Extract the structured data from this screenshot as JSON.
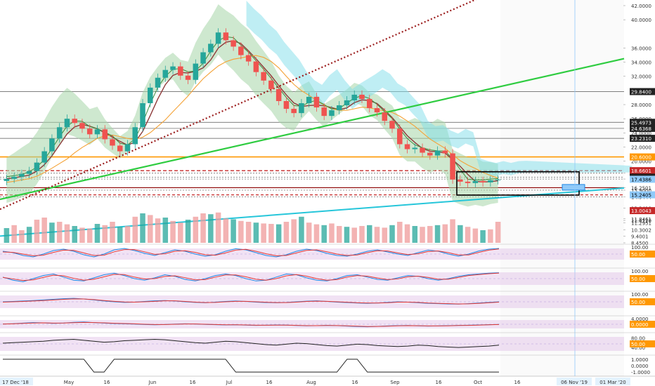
{
  "colors": {
    "background": "#ffffff",
    "bull_candle": "#26a69a",
    "bear_candle": "#ef5350",
    "cloud_green": "#a5d6a7",
    "cloud_blue": "#80deea",
    "trend_green": "#2ecc40",
    "trend_cyan": "#26c6da",
    "dotted_red": "#9b1c1c",
    "orange_level": "#ff9800",
    "red_level": "#c62828",
    "oscillator_band": "#e1bee7",
    "axis_text": "#333333"
  },
  "chart_data": [
    {
      "type": "candlestick",
      "title": "",
      "x_ticks": [
        "17 Dec '18",
        "May",
        "16",
        "Jun",
        "16",
        "Jul",
        "16",
        "Aug",
        "16",
        "Sep",
        "16",
        "Oct",
        "16",
        "06 Nov '19",
        "01 Mar '20"
      ],
      "y_ticks": [
        "42.0000",
        "40.0000",
        "36.0000",
        "34.0000",
        "32.0000",
        "28.0000",
        "26.0000",
        "24.0000",
        "22.0000",
        "20.0000",
        "18.3000",
        "17.4767",
        "16.2501",
        "15.9000",
        "14.9444",
        "13.3419",
        "11.8461",
        "11.6110",
        "11.2951",
        "10.3002",
        "9.4001",
        "8.4500"
      ],
      "price_labels": [
        {
          "text": "29.8400",
          "style": "dark"
        },
        {
          "text": "25.4973",
          "style": "dark"
        },
        {
          "text": "24.6368",
          "style": "dark"
        },
        {
          "text": "23.2310",
          "style": "dark"
        },
        {
          "text": "20.6000",
          "style": "orange"
        },
        {
          "text": "18.6601",
          "style": "red"
        },
        {
          "text": "17.7386",
          "style": "dark"
        },
        {
          "text": "17.4386",
          "style": "blue"
        },
        {
          "text": "15.2405",
          "style": "blue"
        },
        {
          "text": "13.0043",
          "style": "red"
        }
      ],
      "series_close": [
        17.5,
        17.8,
        18.2,
        18.6,
        19.8,
        21.4,
        23.2,
        24.8,
        26.0,
        25.4,
        24.6,
        23.8,
        24.5,
        23.1,
        22.2,
        21.4,
        22.4,
        24.8,
        28.2,
        30.4,
        31.8,
        32.9,
        33.4,
        32.1,
        31.5,
        33.8,
        35.4,
        36.6,
        38.2,
        37.1,
        36.2,
        35.0,
        34.1,
        32.6,
        31.4,
        30.2,
        28.5,
        27.4,
        26.8,
        28.2,
        29.1,
        27.6,
        26.4,
        27.2,
        27.9,
        28.6,
        29.4,
        28.8,
        27.5,
        26.9,
        25.7,
        24.6,
        22.4,
        21.7,
        21.9,
        21.2,
        20.8,
        21.5,
        21.1,
        17.4,
        17.1,
        16.9,
        17.2,
        17.0,
        17.3,
        17.4
      ],
      "ylim": [
        8.45,
        42.0
      ],
      "horizontal_levels": [
        29.84,
        25.4973,
        24.6368,
        23.231,
        20.6,
        18.6601,
        18.3,
        17.7386,
        17.4767,
        16.2501,
        15.9,
        15.2405,
        14.9444
      ],
      "volume_bars": [
        0.35,
        0.42,
        0.3,
        0.38,
        0.55,
        0.6,
        0.48,
        0.5,
        0.44,
        0.4,
        0.36,
        0.34,
        0.45,
        0.42,
        0.5,
        0.38,
        0.4,
        0.62,
        0.7,
        0.66,
        0.58,
        0.6,
        0.52,
        0.48,
        0.55,
        0.62,
        0.7,
        0.68,
        0.72,
        0.58,
        0.56,
        0.52,
        0.5,
        0.48,
        0.46,
        0.45,
        0.44,
        0.5,
        0.56,
        0.62,
        0.48,
        0.44,
        0.42,
        0.46,
        0.4,
        0.38,
        0.36,
        0.4,
        0.42,
        0.38,
        0.36,
        0.42,
        0.5,
        0.44,
        0.4,
        0.38,
        0.4,
        0.42,
        0.44,
        0.56,
        0.42,
        0.38,
        0.34,
        0.3,
        0.32,
        0.5
      ]
    },
    {
      "type": "line",
      "title": "",
      "y_ticks": [
        "100.00"
      ],
      "label": "50.00",
      "range": [
        0,
        100
      ],
      "series": [
        {
          "values": [
            70,
            60,
            40,
            30,
            50,
            75,
            85,
            70,
            45,
            30,
            50,
            80,
            90,
            75,
            55,
            40,
            60,
            80,
            70,
            50,
            35,
            45,
            70,
            88,
            80,
            60,
            40,
            30,
            45,
            70,
            85,
            75,
            55,
            40,
            35,
            50,
            70,
            80,
            65,
            50,
            40,
            60,
            78,
            70,
            50,
            35,
            50,
            72,
            85,
            90
          ]
        },
        {
          "values": [
            65,
            62,
            50,
            38,
            42,
            62,
            78,
            76,
            58,
            40,
            42,
            66,
            82,
            82,
            66,
            48,
            52,
            70,
            74,
            62,
            45,
            42,
            58,
            78,
            84,
            70,
            52,
            38,
            40,
            58,
            76,
            80,
            66,
            50,
            40,
            44,
            60,
            74,
            72,
            58,
            46,
            52,
            68,
            72,
            60,
            44,
            44,
            62,
            78,
            86
          ]
        }
      ]
    },
    {
      "type": "line",
      "title": "",
      "y_ticks": [
        "100.00"
      ],
      "label": "50.00",
      "range": [
        0,
        100
      ],
      "series": [
        {
          "values": [
            60,
            40,
            30,
            50,
            70,
            80,
            60,
            40,
            35,
            55,
            75,
            85,
            70,
            50,
            40,
            55,
            75,
            65,
            45,
            35,
            50,
            70,
            80,
            70,
            50,
            35,
            40,
            60,
            80,
            75,
            55,
            40,
            35,
            50,
            70,
            75,
            60,
            45,
            40,
            55,
            70,
            65,
            50,
            40,
            50,
            65,
            75,
            80,
            85,
            88
          ]
        },
        {
          "values": [
            58,
            48,
            38,
            42,
            58,
            72,
            68,
            52,
            40,
            46,
            62,
            78,
            76,
            60,
            48,
            50,
            64,
            68,
            56,
            42,
            44,
            60,
            74,
            74,
            62,
            46,
            40,
            50,
            68,
            76,
            66,
            50,
            40,
            44,
            60,
            70,
            66,
            54,
            44,
            48,
            62,
            66,
            58,
            46,
            46,
            58,
            70,
            76,
            82,
            86
          ]
        }
      ]
    },
    {
      "type": "line",
      "title": "",
      "y_ticks": [
        "100.00"
      ],
      "label": "50.00",
      "range": [
        0,
        100
      ],
      "series": [
        {
          "values": [
            50,
            52,
            55,
            58,
            62,
            66,
            70,
            72,
            68,
            62,
            55,
            50,
            46,
            48,
            52,
            56,
            58,
            55,
            50,
            46,
            44,
            48,
            52,
            55,
            52,
            48,
            45,
            44,
            46,
            50,
            54,
            56,
            52,
            48,
            45,
            42,
            40,
            42,
            46,
            50,
            48,
            44,
            40,
            38,
            36,
            35,
            38,
            42,
            46,
            50
          ]
        },
        {
          "values": [
            48,
            50,
            52,
            55,
            58,
            62,
            66,
            69,
            68,
            64,
            58,
            53,
            49,
            48,
            50,
            53,
            56,
            56,
            52,
            48,
            45,
            46,
            50,
            53,
            53,
            50,
            47,
            45,
            45,
            48,
            52,
            54,
            53,
            50,
            47,
            44,
            42,
            42,
            44,
            48,
            48,
            46,
            42,
            40,
            38,
            36,
            37,
            40,
            44,
            48
          ]
        }
      ]
    },
    {
      "type": "line",
      "title": "",
      "y_ticks": [
        "4.0000"
      ],
      "label": "0.0000",
      "range": [
        -4,
        4
      ],
      "series": [
        {
          "values": [
            0.2,
            0.4,
            0.8,
            1.2,
            1.0,
            0.6,
            0.9,
            1.4,
            1.6,
            1.2,
            0.8,
            0.5,
            0.3,
            0.1,
            -0.2,
            -0.4,
            -0.2,
            0.1,
            0.3,
            0.2,
            -0.1,
            -0.3,
            -0.5,
            -0.4,
            -0.6,
            -0.8,
            -0.7,
            -0.5,
            -0.6,
            -0.9,
            -1.1,
            -1.0,
            -0.8,
            -1.0,
            -1.3,
            -1.6,
            -1.8,
            -1.5,
            -1.2,
            -1.0,
            -0.9,
            -1.1,
            -1.3,
            -1.2,
            -1.0,
            -0.8,
            -0.7,
            -0.5,
            -0.3,
            -0.1
          ]
        },
        {
          "values": [
            0.1,
            0.3,
            0.6,
            0.9,
            1.0,
            0.8,
            0.85,
            1.1,
            1.3,
            1.2,
            1.0,
            0.7,
            0.5,
            0.3,
            0.0,
            -0.2,
            -0.2,
            0.0,
            0.2,
            0.2,
            0.0,
            -0.2,
            -0.4,
            -0.4,
            -0.5,
            -0.7,
            -0.7,
            -0.6,
            -0.6,
            -0.8,
            -1.0,
            -1.0,
            -0.9,
            -0.95,
            -1.15,
            -1.4,
            -1.6,
            -1.55,
            -1.35,
            -1.15,
            -1.0,
            -1.05,
            -1.2,
            -1.2,
            -1.1,
            -0.9,
            -0.8,
            -0.6,
            -0.4,
            -0.2
          ]
        }
      ]
    },
    {
      "type": "line",
      "title": "",
      "y_ticks": [
        "80.00",
        "40.00"
      ],
      "label": "50.00",
      "range": [
        20,
        90
      ],
      "series": [
        {
          "values": [
            58,
            60,
            62,
            64,
            66,
            70,
            72,
            74,
            70,
            66,
            62,
            64,
            68,
            70,
            72,
            74,
            72,
            68,
            64,
            60,
            58,
            62,
            66,
            64,
            60,
            56,
            52,
            50,
            54,
            58,
            56,
            52,
            48,
            46,
            50,
            54,
            52,
            48,
            46,
            44,
            46,
            50,
            48,
            44,
            42,
            40,
            42,
            44,
            46,
            50
          ]
        }
      ]
    },
    {
      "type": "line",
      "title": "",
      "y_ticks": [
        "1.0000",
        "0.0000",
        "-1.0000"
      ],
      "range": [
        -1.2,
        1.2
      ],
      "series": [
        {
          "values": [
            1,
            1,
            1,
            1,
            1,
            1,
            1,
            1,
            1,
            -1,
            -1,
            1,
            1,
            1,
            1,
            1,
            1,
            1,
            1,
            1,
            1,
            1,
            1,
            -1,
            -1,
            -1,
            -1,
            -1,
            -1,
            -1,
            -1,
            -1,
            -1,
            -1,
            1,
            1,
            -1,
            -1,
            -1,
            -1,
            -1,
            -1,
            -1,
            -1,
            -1,
            -1,
            -1,
            -1,
            -1,
            -1
          ]
        }
      ]
    }
  ]
}
